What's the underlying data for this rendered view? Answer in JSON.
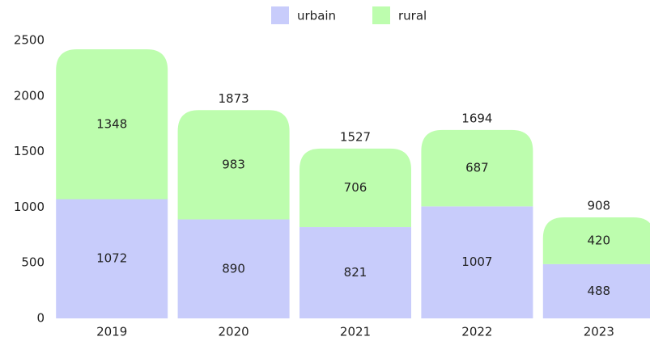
{
  "chart_data": {
    "type": "stacked_bar",
    "categories": [
      "2019",
      "2020",
      "2021",
      "2022",
      "2023"
    ],
    "series": [
      {
        "name": "urbain",
        "color": "#c8ccfb",
        "values": [
          1072,
          890,
          821,
          1007,
          488
        ]
      },
      {
        "name": "rural",
        "color": "#bdfdae",
        "values": [
          1348,
          983,
          706,
          687,
          420
        ]
      }
    ],
    "total_labels": [
      null,
      1873,
      1527,
      1694,
      908
    ],
    "ylim": [
      0,
      2500
    ],
    "yticks": [
      0,
      500,
      1000,
      1500,
      2000,
      2500
    ],
    "legend": "top"
  }
}
